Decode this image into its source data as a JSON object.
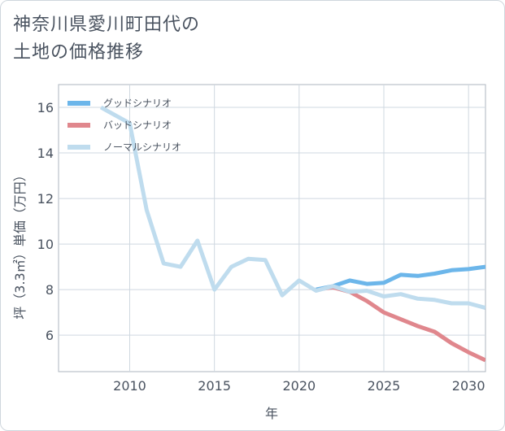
{
  "title_lines": [
    "神奈川県愛川町田代の",
    "土地の価格推移"
  ],
  "chart_data": {
    "type": "line",
    "title": "神奈川県愛川町田代の土地の価格推移",
    "xlabel": "年",
    "ylabel": "坪（3.3㎡）単価（万円）",
    "xlim": [
      2005.8,
      2031
    ],
    "ylim": [
      4.4,
      17
    ],
    "xticks": [
      2010,
      2015,
      2020,
      2025,
      2030
    ],
    "yticks": [
      6,
      8,
      10,
      12,
      14,
      16
    ],
    "grid": true,
    "legend_position": "top-left",
    "series": [
      {
        "name": "グッドシナリオ",
        "color": "#6cb6ea",
        "x": [
          2021.0,
          2022.0,
          2023.0,
          2024.0,
          2025.0,
          2026.0,
          2027.0,
          2028.0,
          2029.0,
          2030.0,
          2031.0
        ],
        "values": [
          8.0,
          8.15,
          8.4,
          8.25,
          8.3,
          8.65,
          8.6,
          8.7,
          8.85,
          8.9,
          9.0
        ]
      },
      {
        "name": "バッドシナリオ",
        "color": "#e0878d",
        "x": [
          2021.0,
          2022.0,
          2023.0,
          2024.0,
          2025.0,
          2026.0,
          2027.0,
          2028.0,
          2029.0,
          2030.0,
          2031.0
        ],
        "values": [
          8.0,
          8.1,
          7.9,
          7.5,
          7.0,
          6.7,
          6.4,
          6.15,
          5.65,
          5.25,
          4.9
        ]
      },
      {
        "name": "ノーマルシナリオ",
        "color": "#bfdcee",
        "x": [
          2008.3,
          2010.0,
          2011.0,
          2012.0,
          2013.0,
          2014.0,
          2015.0,
          2016.0,
          2017.0,
          2018.0,
          2019.0,
          2020.0,
          2021.0,
          2022.0,
          2023.0,
          2024.0,
          2025.0,
          2026.0,
          2027.0,
          2028.0,
          2029.0,
          2030.0,
          2031.0
        ],
        "values": [
          16.0,
          15.3,
          11.5,
          9.15,
          9.0,
          10.15,
          8.0,
          9.0,
          9.35,
          9.3,
          7.75,
          8.4,
          7.95,
          8.15,
          7.9,
          7.95,
          7.7,
          7.8,
          7.6,
          7.55,
          7.4,
          7.4,
          7.2
        ]
      }
    ]
  }
}
